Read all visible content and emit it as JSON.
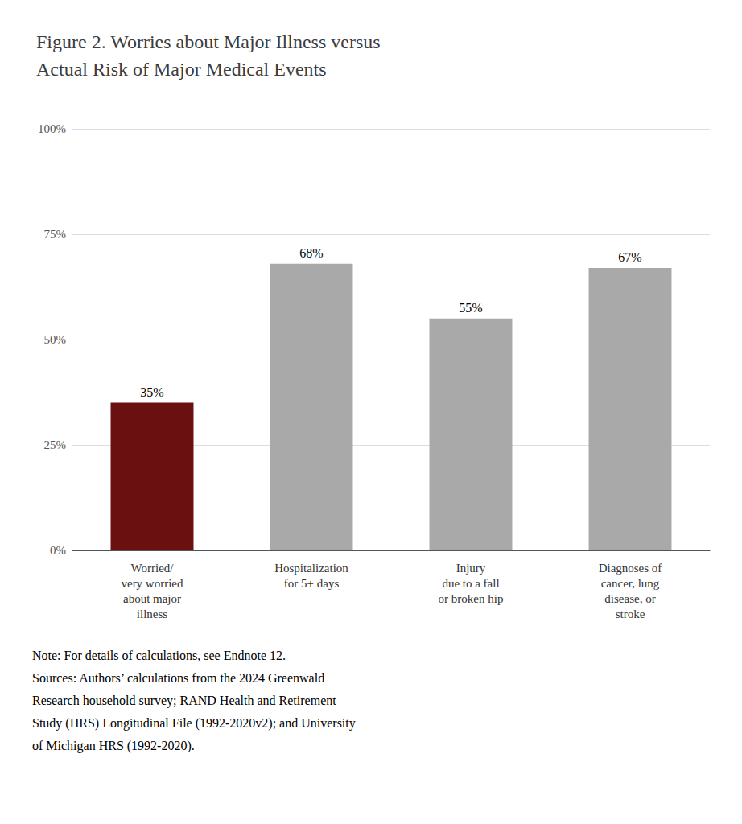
{
  "chart_data": {
    "type": "bar",
    "title": "Figure 2. Worries about Major Illness versus\nActual Risk of Major Medical Events",
    "categories": [
      "Worried/\nvery worried\nabout major\nillness",
      "Hospitalization\nfor 5+ days",
      "Injury\ndue to a fall\nor broken hip",
      "Diagnoses of\ncancer, lung\ndisease, or\nstroke"
    ],
    "values": [
      35,
      68,
      55,
      67
    ],
    "value_labels": [
      "35%",
      "68%",
      "55%",
      "67%"
    ],
    "data_labels": true,
    "colors": [
      "#6B1010",
      "#A9A9A9",
      "#A9A9A9",
      "#A9A9A9"
    ],
    "ylim": [
      0,
      100
    ],
    "yticks": [
      {
        "value": 0,
        "label": "0%"
      },
      {
        "value": 25,
        "label": "25%"
      },
      {
        "value": 50,
        "label": "50%"
      },
      {
        "value": 75,
        "label": "75%"
      },
      {
        "value": 100,
        "label": "100%"
      }
    ],
    "grid": true,
    "annotations": [
      "Note: For details of calculations, see Endnote 12.",
      "Sources: Authors’ calculations from the 2024 Greenwald",
      "Research household survey; RAND Health and Retirement",
      "Study (HRS) Longitudinal File (1992-2020v2); and University",
      "of Michigan HRS (1992-2020)."
    ]
  }
}
